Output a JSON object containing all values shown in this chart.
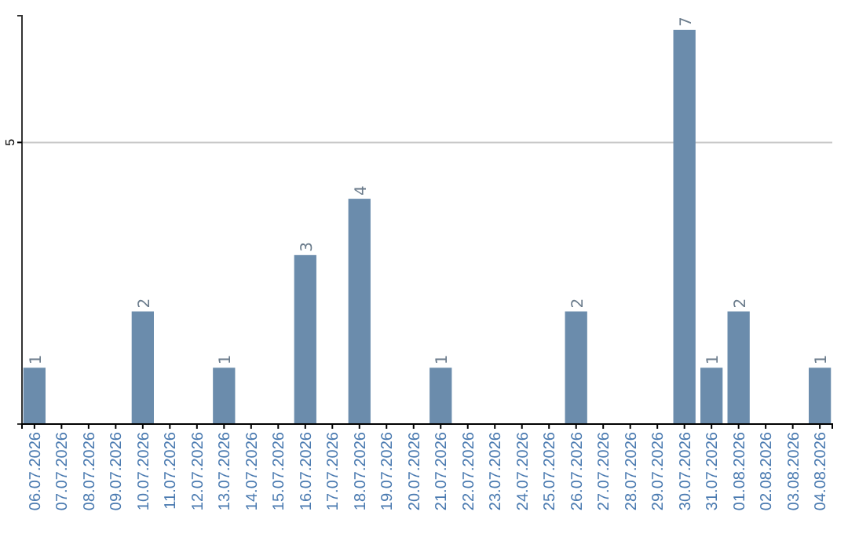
{
  "chart_data": {
    "type": "bar",
    "categories": [
      "06.07.2026",
      "07.07.2026",
      "08.07.2026",
      "09.07.2026",
      "10.07.2026",
      "11.07.2026",
      "12.07.2026",
      "13.07.2026",
      "14.07.2026",
      "15.07.2026",
      "16.07.2026",
      "17.07.2026",
      "18.07.2026",
      "19.07.2026",
      "20.07.2026",
      "21.07.2026",
      "22.07.2026",
      "23.07.2026",
      "24.07.2026",
      "25.07.2026",
      "26.07.2026",
      "27.07.2026",
      "28.07.2026",
      "29.07.2026",
      "30.07.2026",
      "31.07.2026",
      "01.08.2026",
      "02.08.2026",
      "03.08.2026",
      "04.08.2026"
    ],
    "values": [
      1,
      0,
      0,
      0,
      2,
      0,
      0,
      1,
      0,
      0,
      3,
      0,
      4,
      0,
      0,
      1,
      0,
      0,
      0,
      0,
      2,
      0,
      0,
      0,
      7,
      1,
      2,
      0,
      0,
      1
    ],
    "value_labels": [
      "1",
      null,
      null,
      null,
      "2",
      null,
      null,
      "1",
      null,
      null,
      "3",
      null,
      "4",
      null,
      null,
      "1",
      null,
      null,
      null,
      null,
      "2",
      null,
      null,
      null,
      "7",
      "1",
      "2",
      null,
      null,
      "1"
    ],
    "color": "#6b8cac",
    "ylim": [
      0,
      7.25
    ],
    "yticks": [
      5
    ],
    "grid": "y"
  }
}
